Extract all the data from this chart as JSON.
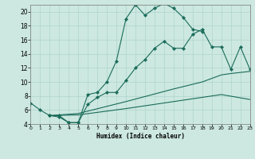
{
  "xlabel": "Humidex (Indice chaleur)",
  "bg_color": "#cce8e0",
  "grid_color": "#b0d4cc",
  "line_color": "#1a6b5a",
  "line1_x": [
    0,
    1,
    2,
    3,
    4,
    5,
    6,
    7,
    8,
    9,
    10,
    11,
    12,
    13,
    14,
    15,
    16,
    17,
    18
  ],
  "line1_y": [
    7.0,
    6.0,
    5.2,
    5.2,
    4.2,
    4.2,
    8.2,
    8.5,
    10.0,
    13.0,
    19.0,
    21.0,
    19.5,
    20.5,
    21.2,
    20.5,
    19.2,
    17.5,
    17.2
  ],
  "line2_x": [
    2,
    3,
    4,
    5,
    6,
    7,
    8,
    9,
    10,
    11,
    12,
    13,
    14,
    15,
    16,
    17,
    18,
    19,
    20,
    21,
    22,
    23
  ],
  "line2_y": [
    5.2,
    5.0,
    4.2,
    4.2,
    6.8,
    7.8,
    8.5,
    8.5,
    10.2,
    12.0,
    13.2,
    14.8,
    15.8,
    14.8,
    14.8,
    16.8,
    17.5,
    15.0,
    15.0,
    11.8,
    15.0,
    11.8
  ],
  "line3_x": [
    2,
    5,
    10,
    15,
    18,
    20,
    21,
    23
  ],
  "line3_y": [
    5.2,
    5.5,
    7.2,
    9.0,
    10.0,
    11.0,
    11.2,
    11.5
  ],
  "line4_x": [
    2,
    5,
    10,
    15,
    18,
    20,
    23
  ],
  "line4_y": [
    5.2,
    5.3,
    6.2,
    7.2,
    7.8,
    8.2,
    7.5
  ],
  "xlim": [
    0,
    23
  ],
  "ylim": [
    4,
    21
  ],
  "xticks": [
    0,
    1,
    2,
    3,
    4,
    5,
    6,
    7,
    8,
    9,
    10,
    11,
    12,
    13,
    14,
    15,
    16,
    17,
    18,
    19,
    20,
    21,
    22,
    23
  ],
  "yticks": [
    4,
    6,
    8,
    10,
    12,
    14,
    16,
    18,
    20
  ]
}
